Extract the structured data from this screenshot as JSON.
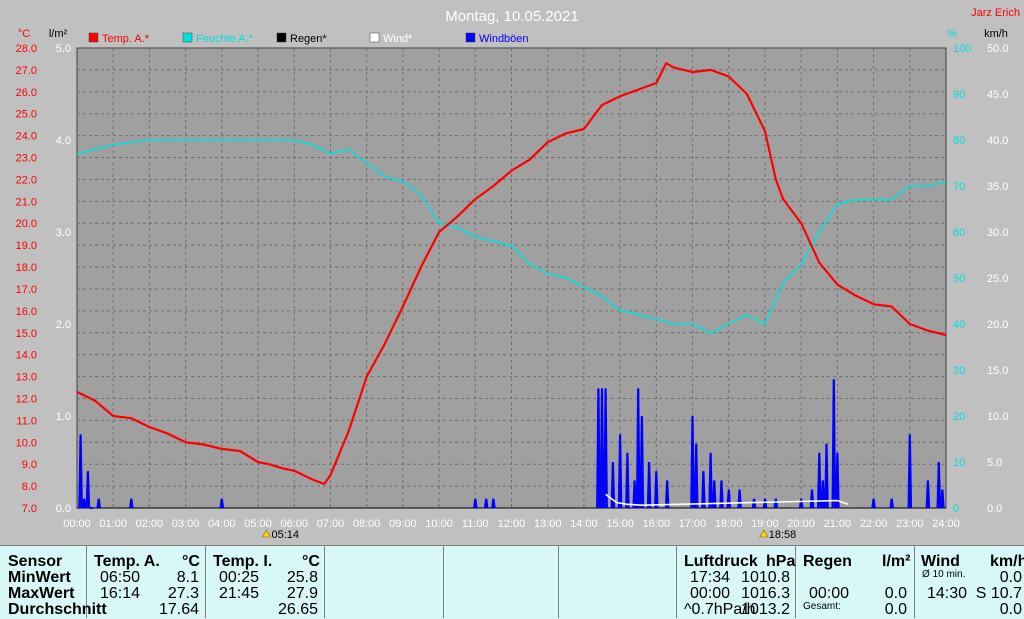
{
  "header": {
    "title": "Montag, 10.05.2021",
    "author": "Jarz Erich"
  },
  "units": {
    "left_temp": "°C",
    "left_rain": "l/m²",
    "right_hum": "%",
    "right_wind": "km/h"
  },
  "legend": [
    {
      "label": "Temp. A.*",
      "color": "#ff0000"
    },
    {
      "label": "Feuchte A.*",
      "color": "#00e0e0"
    },
    {
      "label": "Regen*",
      "color": "#000000"
    },
    {
      "label": "Wind*",
      "color": "#ffffff"
    },
    {
      "label": "Windböen",
      "color": "#0000ff"
    }
  ],
  "sun": {
    "rise": "05:14",
    "set": "18:58"
  },
  "chart_data": {
    "type": "line",
    "x_unit": "hour of day",
    "xlim": [
      0,
      24
    ],
    "x_ticks": [
      "00:00",
      "01:00",
      "02:00",
      "03:00",
      "04:00",
      "05:00",
      "06:00",
      "07:00",
      "08:00",
      "09:00",
      "10:00",
      "11:00",
      "12:00",
      "13:00",
      "14:00",
      "15:00",
      "16:00",
      "17:00",
      "18:00",
      "19:00",
      "20:00",
      "21:00",
      "22:00",
      "23:00",
      "24:00"
    ],
    "axes": {
      "temp": {
        "range": [
          7.0,
          28.0
        ],
        "ticks": [
          "7.0",
          "8.0",
          "9.0",
          "10.0",
          "11.0",
          "12.0",
          "13.0",
          "14.0",
          "15.0",
          "16.0",
          "17.0",
          "18.0",
          "19.0",
          "20.0",
          "21.0",
          "22.0",
          "23.0",
          "24.0",
          "25.0",
          "26.0",
          "27.0",
          "28.0"
        ]
      },
      "rain": {
        "range": [
          0,
          5.0
        ],
        "ticks": [
          "0.0",
          "1.0",
          "2.0",
          "3.0",
          "4.0",
          "5.0"
        ]
      },
      "humidity": {
        "range": [
          0,
          100
        ],
        "ticks": [
          "0",
          "10",
          "20",
          "30",
          "40",
          "50",
          "60",
          "70",
          "80",
          "90",
          "100"
        ]
      },
      "wind": {
        "range": [
          0,
          50
        ],
        "ticks": [
          "0.0",
          "5.0",
          "10.0",
          "15.0",
          "20.0",
          "25.0",
          "30.0",
          "35.0",
          "40.0",
          "45.0",
          "50.0"
        ]
      }
    },
    "grid": true,
    "series": [
      {
        "name": "Temp. A.*",
        "axis": "temp",
        "color": "#ff0000",
        "points": [
          [
            0,
            12.3
          ],
          [
            0.5,
            11.9
          ],
          [
            1,
            11.2
          ],
          [
            1.5,
            11.1
          ],
          [
            2,
            10.7
          ],
          [
            2.5,
            10.4
          ],
          [
            3,
            10.0
          ],
          [
            3.5,
            9.9
          ],
          [
            4,
            9.7
          ],
          [
            4.5,
            9.6
          ],
          [
            5,
            9.1
          ],
          [
            5.3,
            9.0
          ],
          [
            5.7,
            8.8
          ],
          [
            6,
            8.7
          ],
          [
            6.5,
            8.3
          ],
          [
            6.83,
            8.1
          ],
          [
            7,
            8.5
          ],
          [
            7.5,
            10.5
          ],
          [
            8,
            13.0
          ],
          [
            8.5,
            14.5
          ],
          [
            9,
            16.2
          ],
          [
            9.5,
            18.0
          ],
          [
            10,
            19.6
          ],
          [
            10.5,
            20.3
          ],
          [
            11,
            21.1
          ],
          [
            11.5,
            21.7
          ],
          [
            12,
            22.4
          ],
          [
            12.5,
            22.9
          ],
          [
            13,
            23.7
          ],
          [
            13.5,
            24.1
          ],
          [
            14,
            24.3
          ],
          [
            14.5,
            25.4
          ],
          [
            15,
            25.8
          ],
          [
            15.5,
            26.1
          ],
          [
            16,
            26.4
          ],
          [
            16.27,
            27.3
          ],
          [
            16.5,
            27.1
          ],
          [
            17,
            26.9
          ],
          [
            17.5,
            27.0
          ],
          [
            18,
            26.7
          ],
          [
            18.5,
            25.9
          ],
          [
            19,
            24.2
          ],
          [
            19.3,
            22.0
          ],
          [
            19.5,
            21.1
          ],
          [
            20,
            20.0
          ],
          [
            20.5,
            18.2
          ],
          [
            21,
            17.2
          ],
          [
            21.5,
            16.7
          ],
          [
            22,
            16.3
          ],
          [
            22.5,
            16.2
          ],
          [
            23,
            15.4
          ],
          [
            23.5,
            15.1
          ],
          [
            24,
            14.9
          ]
        ]
      },
      {
        "name": "Feuchte A.*",
        "axis": "humidity",
        "color": "#00e0e0",
        "points": [
          [
            0,
            77
          ],
          [
            0.5,
            78
          ],
          [
            1,
            79
          ],
          [
            2,
            80
          ],
          [
            3,
            80
          ],
          [
            4,
            80
          ],
          [
            5,
            80
          ],
          [
            5.5,
            80
          ],
          [
            6,
            80
          ],
          [
            6.5,
            79
          ],
          [
            7,
            77
          ],
          [
            7.5,
            78
          ],
          [
            8,
            75
          ],
          [
            8.5,
            72
          ],
          [
            9,
            71
          ],
          [
            9.5,
            68
          ],
          [
            10,
            62
          ],
          [
            10.5,
            61
          ],
          [
            11,
            59
          ],
          [
            11.5,
            58
          ],
          [
            12,
            57
          ],
          [
            12.5,
            53
          ],
          [
            13,
            51
          ],
          [
            13.5,
            50
          ],
          [
            14,
            48
          ],
          [
            14.5,
            46
          ],
          [
            15,
            43
          ],
          [
            15.5,
            42
          ],
          [
            16,
            41
          ],
          [
            16.5,
            40
          ],
          [
            17,
            40
          ],
          [
            17.5,
            38
          ],
          [
            18,
            40
          ],
          [
            18.5,
            42
          ],
          [
            19,
            40
          ],
          [
            19.5,
            49
          ],
          [
            20,
            53
          ],
          [
            20.5,
            60
          ],
          [
            21,
            66
          ],
          [
            21.5,
            67
          ],
          [
            22,
            67
          ],
          [
            22.5,
            67
          ],
          [
            23,
            70
          ],
          [
            23.5,
            70
          ],
          [
            24,
            71
          ]
        ]
      },
      {
        "name": "Windböen",
        "axis": "wind",
        "color": "#0000ff",
        "style": "spikes",
        "points": [
          [
            0.1,
            8
          ],
          [
            0.2,
            1
          ],
          [
            0.3,
            4
          ],
          [
            0.4,
            0
          ],
          [
            0.6,
            1
          ],
          [
            1.5,
            1
          ],
          [
            4,
            1
          ],
          [
            11,
            1
          ],
          [
            11.3,
            1
          ],
          [
            11.5,
            1
          ],
          [
            14.4,
            13
          ],
          [
            14.5,
            13
          ],
          [
            14.6,
            13
          ],
          [
            14.8,
            5
          ],
          [
            15,
            8
          ],
          [
            15.2,
            6
          ],
          [
            15.4,
            3
          ],
          [
            15.5,
            13
          ],
          [
            15.6,
            10
          ],
          [
            15.8,
            5
          ],
          [
            16,
            4
          ],
          [
            16.3,
            3
          ],
          [
            17,
            10
          ],
          [
            17.1,
            7
          ],
          [
            17.3,
            4
          ],
          [
            17.5,
            6
          ],
          [
            17.6,
            3
          ],
          [
            17.8,
            3
          ],
          [
            18,
            2
          ],
          [
            18.3,
            2
          ],
          [
            18.7,
            1
          ],
          [
            19,
            1
          ],
          [
            19.3,
            1
          ],
          [
            20,
            1
          ],
          [
            20.3,
            2
          ],
          [
            20.5,
            6
          ],
          [
            20.6,
            3
          ],
          [
            20.7,
            7
          ],
          [
            20.9,
            14
          ],
          [
            21,
            6
          ],
          [
            22,
            1
          ],
          [
            22.5,
            1
          ],
          [
            23,
            8
          ],
          [
            23.5,
            3
          ],
          [
            23.8,
            5
          ],
          [
            23.9,
            2
          ]
        ]
      },
      {
        "name": "Wind*",
        "axis": "wind",
        "color": "#ffffff",
        "points": [
          [
            14.6,
            1.5
          ],
          [
            14.9,
            0.6
          ],
          [
            15.2,
            0.4
          ],
          [
            15.6,
            0.3
          ],
          [
            21.0,
            0.8
          ],
          [
            21.3,
            0.4
          ]
        ]
      },
      {
        "name": "Regen*",
        "axis": "rain",
        "color": "#000000",
        "points": [
          [
            0,
            0
          ],
          [
            24,
            0
          ]
        ]
      }
    ]
  },
  "summary": {
    "sensor_label": "Sensor",
    "rows": [
      "MinWert",
      "MaxWert",
      "Durchschnitt"
    ],
    "temp_a": {
      "label": "Temp. A.",
      "unit": "°C",
      "min_time": "06:50",
      "min": "8.1",
      "max_time": "16:14",
      "max": "27.3",
      "avg": "17.64"
    },
    "temp_i": {
      "label": "Temp. I.",
      "unit": "°C",
      "min_time": "00:25",
      "min": "25.8",
      "max_time": "21:45",
      "max": "27.9",
      "avg": "26.65"
    },
    "pressure": {
      "label": "Luftdruck",
      "unit": "hPa",
      "min_time": "17:34",
      "min": "1010.8",
      "max_time": "00:00",
      "max": "1016.3",
      "trend_label": "^0.7hPa/h",
      "trend": "1013.2"
    },
    "rain": {
      "label": "Regen",
      "unit": "l/m²",
      "max_time": "00:00",
      "max": "0.0",
      "total_label": "Gesamt:",
      "total": "0.0"
    },
    "wind": {
      "label": "Wind",
      "unit": "km/h",
      "min_time": "Ø 10 min.",
      "min": "0.0",
      "max_time": "14:30",
      "max": "S 10.7",
      "avg": "0.0"
    }
  }
}
